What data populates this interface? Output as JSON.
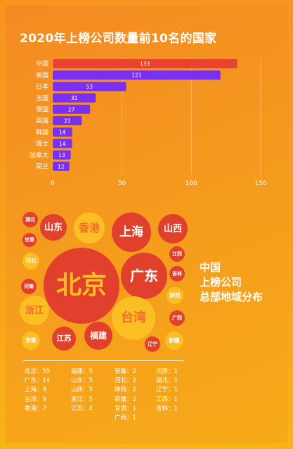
{
  "header": {
    "title": "2020年上榜公司数量前10名的国家"
  },
  "chart_data": [
    {
      "type": "bar",
      "orientation": "horizontal",
      "title": "2020年上榜公司数量前10名的国家",
      "categories": [
        "中国",
        "美国",
        "日本",
        "法国",
        "德国",
        "英国",
        "韩国",
        "瑞士",
        "加拿大",
        "荷兰"
      ],
      "values": [
        133,
        121,
        53,
        31,
        27,
        21,
        14,
        14,
        13,
        12
      ],
      "data_labels": [
        "133",
        "121",
        "53",
        "31",
        "27",
        "21",
        "14",
        "14",
        "13",
        "12"
      ],
      "xlim": [
        0,
        150
      ],
      "x_ticks": [
        0,
        50,
        100,
        150
      ],
      "x_tick_labels": [
        "0",
        "50",
        "100",
        "150"
      ],
      "grid": true,
      "colors": {
        "highlight": "#e8432c",
        "bar": "#7b2ff0"
      }
    },
    {
      "type": "bubble",
      "title": "中国上榜公司总部地域分布",
      "items": [
        {
          "label": "北京",
          "value": 55
        },
        {
          "label": "广东",
          "value": 14
        },
        {
          "label": "上海",
          "value": 9
        },
        {
          "label": "台湾",
          "value": 9
        },
        {
          "label": "香港",
          "value": 7
        },
        {
          "label": "福建",
          "value": 5
        },
        {
          "label": "山东",
          "value": 5
        },
        {
          "label": "山西",
          "value": 5
        },
        {
          "label": "浙江",
          "value": 5
        },
        {
          "label": "江苏",
          "value": 4
        },
        {
          "label": "安徽",
          "value": 2
        },
        {
          "label": "河北",
          "value": 2
        },
        {
          "label": "陕西",
          "value": 2
        },
        {
          "label": "新疆",
          "value": 2
        },
        {
          "label": "甘肃",
          "value": 1
        },
        {
          "label": "广西",
          "value": 1
        },
        {
          "label": "河南",
          "value": 1
        },
        {
          "label": "湖北",
          "value": 1
        },
        {
          "label": "辽宁",
          "value": 1
        },
        {
          "label": "江西",
          "value": 1
        },
        {
          "label": "吉林",
          "value": 1
        }
      ]
    }
  ],
  "bubble_section": {
    "title_lines": [
      "中国",
      "上榜公司",
      "总部地域分布"
    ]
  },
  "bubble_legend": {
    "columns": [
      [
        "北京：55",
        "广东：14",
        "上海：9",
        "台湾：9",
        "香港：7"
      ],
      [
        "福建：5",
        "山东：5",
        "山西：5",
        "浙江：5",
        "江苏：4"
      ],
      [
        "安徽：2",
        "河北：2",
        "陕西：2",
        "新疆：2",
        "甘肃：1",
        "广西：1"
      ],
      [
        "河南：1",
        "湖北：1",
        "辽宁：1",
        "江西：1",
        "吉林：1"
      ]
    ]
  },
  "colors": {
    "background": "#f6951f",
    "bubble_red": "#e0402c",
    "bubble_yellow": "#fbbf24",
    "text": "#ffffff"
  }
}
